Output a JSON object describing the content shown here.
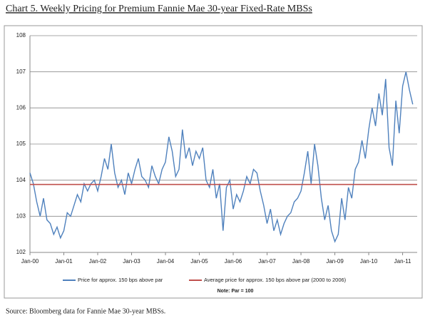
{
  "title": "Chart 5. Weekly Pricing for Premium Fannie Mae 30-year Fixed-Rate MBSs",
  "chart_data": {
    "type": "line",
    "series": [
      {
        "name": "Price for approx. 150 bps above par",
        "color": "#4f81bd",
        "x": [
          2000.0,
          2000.1,
          2000.2,
          2000.3,
          2000.4,
          2000.5,
          2000.6,
          2000.7,
          2000.8,
          2000.9,
          2001.0,
          2001.1,
          2001.2,
          2001.3,
          2001.4,
          2001.5,
          2001.6,
          2001.7,
          2001.8,
          2001.9,
          2002.0,
          2002.1,
          2002.2,
          2002.3,
          2002.4,
          2002.5,
          2002.6,
          2002.7,
          2002.8,
          2002.9,
          2003.0,
          2003.1,
          2003.2,
          2003.3,
          2003.4,
          2003.5,
          2003.6,
          2003.7,
          2003.8,
          2003.9,
          2004.0,
          2004.1,
          2004.2,
          2004.3,
          2004.4,
          2004.5,
          2004.6,
          2004.7,
          2004.8,
          2004.9,
          2005.0,
          2005.1,
          2005.2,
          2005.3,
          2005.4,
          2005.5,
          2005.6,
          2005.7,
          2005.8,
          2005.9,
          2006.0,
          2006.1,
          2006.2,
          2006.3,
          2006.4,
          2006.5,
          2006.6,
          2006.7,
          2006.8,
          2006.9,
          2007.0,
          2007.1,
          2007.2,
          2007.3,
          2007.4,
          2007.5,
          2007.6,
          2007.7,
          2007.8,
          2007.9,
          2008.0,
          2008.1,
          2008.2,
          2008.3,
          2008.4,
          2008.5,
          2008.6,
          2008.7,
          2008.8,
          2008.9,
          2009.0,
          2009.1,
          2009.2,
          2009.3,
          2009.4,
          2009.5,
          2009.6,
          2009.7,
          2009.8,
          2009.9,
          2010.0,
          2010.1,
          2010.2,
          2010.3,
          2010.4,
          2010.5,
          2010.6,
          2010.7,
          2010.8,
          2010.9,
          2011.0,
          2011.1,
          2011.2,
          2011.3
        ],
        "values": [
          104.2,
          103.9,
          103.4,
          103.0,
          103.5,
          102.9,
          102.8,
          102.5,
          102.7,
          102.4,
          102.6,
          103.1,
          103.0,
          103.3,
          103.6,
          103.4,
          103.9,
          103.7,
          103.9,
          104.0,
          103.7,
          104.1,
          104.6,
          104.3,
          105.0,
          104.2,
          103.8,
          104.0,
          103.6,
          104.2,
          103.9,
          104.3,
          104.6,
          104.1,
          104.0,
          103.8,
          104.4,
          104.1,
          103.9,
          104.3,
          104.5,
          105.2,
          104.8,
          104.1,
          104.3,
          105.4,
          104.6,
          104.9,
          104.4,
          104.8,
          104.6,
          104.9,
          104.0,
          103.8,
          104.3,
          103.5,
          103.9,
          102.6,
          103.8,
          104.0,
          103.2,
          103.6,
          103.4,
          103.7,
          104.1,
          103.9,
          104.3,
          104.2,
          103.7,
          103.3,
          102.8,
          103.2,
          102.6,
          102.9,
          102.5,
          102.8,
          103.0,
          103.1,
          103.4,
          103.5,
          103.7,
          104.2,
          104.8,
          103.9,
          105.0,
          104.4,
          103.5,
          102.9,
          103.3,
          102.6,
          102.3,
          102.5,
          103.5,
          102.9,
          103.8,
          103.5,
          104.3,
          104.5,
          105.1,
          104.6,
          105.4,
          106.0,
          105.5,
          106.4,
          105.8,
          106.8,
          104.9,
          104.4,
          106.2,
          105.3,
          106.6,
          107.0,
          106.5,
          106.1
        ]
      },
      {
        "name": "Average price for approx. 150 bps above par (2000 to 2006)",
        "color": "#c0504d",
        "x": [
          2000.0,
          2011.43
        ],
        "values": [
          103.88,
          103.88
        ]
      }
    ],
    "xlim": [
      2000,
      2011.43
    ],
    "xticks": [
      {
        "value": 2000,
        "label": "Jan-00"
      },
      {
        "value": 2001,
        "label": "Jan-01"
      },
      {
        "value": 2002,
        "label": "Jan-02"
      },
      {
        "value": 2003,
        "label": "Jan-03"
      },
      {
        "value": 2004,
        "label": "Jan-04"
      },
      {
        "value": 2005,
        "label": "Jan-05"
      },
      {
        "value": 2006,
        "label": "Jan-06"
      },
      {
        "value": 2007,
        "label": "Jan-07"
      },
      {
        "value": 2008,
        "label": "Jan-08"
      },
      {
        "value": 2009,
        "label": "Jan-09"
      },
      {
        "value": 2010,
        "label": "Jan-10"
      },
      {
        "value": 2011,
        "label": "Jan-11"
      }
    ],
    "ylim": [
      102,
      108
    ],
    "yticks": [
      102,
      103,
      104,
      105,
      106,
      107,
      108
    ],
    "grid": true,
    "note": "Note: Par = 100"
  },
  "source": "Source: Bloomberg data for Fannie Mae 30-year MBSs."
}
